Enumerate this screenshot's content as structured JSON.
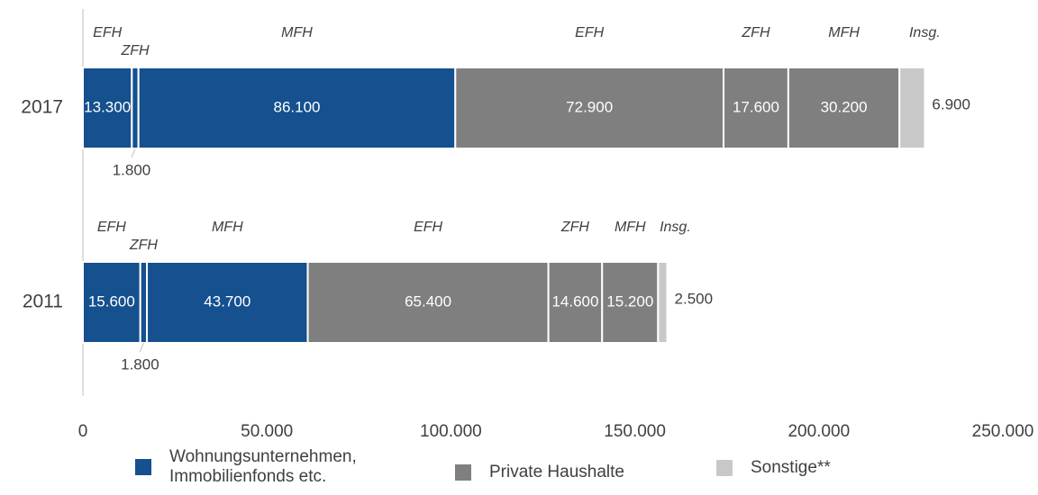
{
  "chart_data": {
    "type": "stacked-bar-horizontal",
    "categories": [
      "2017",
      "2011"
    ],
    "series": [
      {
        "name": "EFH",
        "color": "#15508f",
        "values": [
          13300,
          15600
        ],
        "value_labels": [
          "13.300",
          "15.600"
        ]
      },
      {
        "name": "ZFH",
        "color": "#15508f",
        "values": [
          1800,
          1800
        ],
        "value_labels": [
          "1.800",
          "1.800"
        ]
      },
      {
        "name": "MFH",
        "color": "#15508f",
        "values": [
          86100,
          43700
        ],
        "value_labels": [
          "86.100",
          "43.700"
        ]
      },
      {
        "name": "EFH",
        "color": "#7f7f7f",
        "values": [
          72900,
          65400
        ],
        "value_labels": [
          "72.900",
          "65.400"
        ]
      },
      {
        "name": "ZFH",
        "color": "#7f7f7f",
        "values": [
          17600,
          14600
        ],
        "value_labels": [
          "17.600",
          "14.600"
        ]
      },
      {
        "name": "MFH",
        "color": "#7f7f7f",
        "values": [
          30200,
          15200
        ],
        "value_labels": [
          "30.200",
          "15.200"
        ]
      },
      {
        "name": "Insg.",
        "color": "#c8c8c8",
        "values": [
          6900,
          2500
        ],
        "value_labels": [
          "6.900",
          "2.500"
        ]
      }
    ],
    "xlim": [
      0,
      250000
    ],
    "xticks": [
      0,
      {
        "value": 50000,
        "label": "50.000"
      },
      {
        "value": 100000,
        "label": "100.000"
      },
      {
        "value": 150000,
        "label": "150.000"
      },
      {
        "value": 200000,
        "label": "200.000"
      },
      {
        "value": 250000,
        "label": "250.000"
      }
    ],
    "legend": [
      {
        "name": "Wohnungsunternehmen, Immobilienfonds etc.",
        "color": "#15508f"
      },
      {
        "name": "Private Haushalte",
        "color": "#7f7f7f"
      },
      {
        "name": "Sonstige**",
        "color": "#c8c8c8"
      }
    ]
  }
}
